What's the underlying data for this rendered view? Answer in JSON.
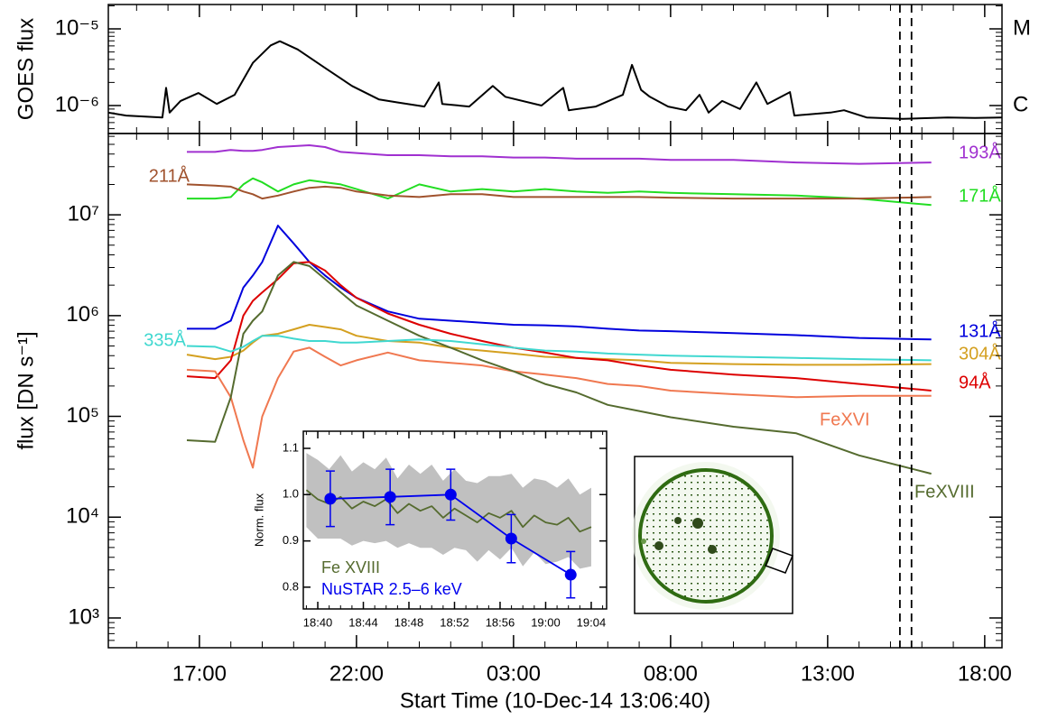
{
  "chart_data": [
    {
      "type": "line",
      "y_label": "GOES flux",
      "log_y": true,
      "xlim": [
        14.1,
        42.55
      ],
      "ylim": [
        4.32e-07,
        2.08e-05
      ],
      "yticks": [
        {
          "value": 1e-05,
          "label": "10⁻⁵"
        },
        {
          "value": 1e-06,
          "label": "10⁻⁶"
        }
      ],
      "right_labels": [
        {
          "value": 1e-05,
          "label": "M"
        },
        {
          "value": 1e-06,
          "label": "C"
        }
      ],
      "series": [
        {
          "color": "#000000",
          "x": [
            14.1,
            14.67,
            15.82,
            15.94,
            16.05,
            16.4,
            16.97,
            17.55,
            18.12,
            18.7,
            19.27,
            19.56,
            20.13,
            21.0,
            21.86,
            22.72,
            23.3,
            24.16,
            24.62,
            24.73,
            25.59,
            26.34,
            26.74,
            27.89,
            28.58,
            28.76,
            29.62,
            30.48,
            30.77,
            31.06,
            31.34,
            31.92,
            32.49,
            32.92,
            33.21,
            33.64,
            34.21,
            34.73,
            35.08,
            35.8,
            35.94,
            37.09,
            37.52,
            38.24,
            39.39,
            40.82,
            41.69,
            42.55
          ],
          "values": [
            8.1e-07,
            7.4e-07,
            7e-07,
            1.7e-06,
            8.1e-07,
            1.15e-06,
            1.46e-06,
            1.05e-06,
            1.38e-06,
            3.6e-06,
            6.1e-06,
            6.9e-06,
            5.4e-06,
            3.1e-06,
            1.8e-06,
            1.2e-06,
            1.1e-06,
            9.7e-07,
            2e-06,
            1.05e-06,
            9.7e-07,
            1.8e-06,
            1.3e-06,
            1e-06,
            1.7e-06,
            8.7e-07,
            9.7e-07,
            1.38e-06,
            3.4e-06,
            1.6e-06,
            1.3e-06,
            9.7e-07,
            8.7e-07,
            1.38e-06,
            8.1e-07,
            1.15e-06,
            9e-07,
            2e-06,
            1.05e-06,
            1.5e-06,
            7.4e-07,
            8.1e-07,
            8.7e-07,
            7e-07,
            6.7e-07,
            7e-07,
            6.9e-07,
            7e-07
          ]
        }
      ]
    },
    {
      "type": "line",
      "y_label": "flux [DN s⁻¹]",
      "x_label": "Start Time (10-Dec-14 13:06:40)",
      "log_y": true,
      "xlim": [
        14.1,
        42.55
      ],
      "ylim": [
        507,
        64000000.0
      ],
      "xticks": [
        {
          "value": 17,
          "label": "17:00"
        },
        {
          "value": 22,
          "label": "22:00"
        },
        {
          "value": 27,
          "label": "03:00"
        },
        {
          "value": 32,
          "label": "08:00"
        },
        {
          "value": 37,
          "label": "13:00"
        },
        {
          "value": 42,
          "label": "18:00"
        }
      ],
      "yticks": [
        {
          "value": 1000,
          "label": "10³"
        },
        {
          "value": 10000,
          "label": "10⁴"
        },
        {
          "value": 100000,
          "label": "10⁵"
        },
        {
          "value": 1000000,
          "label": "10⁶"
        },
        {
          "value": 10000000,
          "label": "10⁷"
        }
      ],
      "vlines": [
        39.3,
        39.67
      ],
      "x": [
        16.6,
        17.5,
        18.0,
        18.4,
        18.7,
        19.0,
        19.5,
        20.0,
        20.5,
        21.0,
        21.5,
        22,
        23,
        24,
        25,
        26,
        27,
        28,
        29,
        30,
        31,
        32,
        34,
        36,
        38,
        40.3
      ],
      "series": [
        {
          "name": "193Å",
          "color": "#a030d0",
          "values": [
            42000000.0,
            42000000.0,
            44000000.0,
            43000000.0,
            43000000.0,
            44000000.0,
            47000000.0,
            48000000.0,
            49000000.0,
            47000000.0,
            42000000.0,
            41000000.0,
            39000000.0,
            39000000.0,
            38000000.0,
            38000000.0,
            37000000.0,
            37000000.0,
            36000000.0,
            36000000.0,
            36000000.0,
            35000000.0,
            35000000.0,
            33000000.0,
            32000000.0,
            33000000.0
          ]
        },
        {
          "name": "171Å",
          "color": "#22dd22",
          "values": [
            14500000.0,
            14500000.0,
            15000000.0,
            20000000.0,
            23000000.0,
            21000000.0,
            17000000.0,
            20000000.0,
            22000000.0,
            21000000.0,
            20000000.0,
            18000000.0,
            14500000.0,
            20000000.0,
            17000000.0,
            18000000.0,
            17000000.0,
            18000000.0,
            17000000.0,
            16500000.0,
            17000000.0,
            16500000.0,
            16000000.0,
            15500000.0,
            14500000.0,
            12500000.0
          ]
        },
        {
          "name": "211Å",
          "color": "#a0522d",
          "values": [
            20000000.0,
            19500000.0,
            19000000.0,
            17000000.0,
            16000000.0,
            14500000.0,
            15500000.0,
            17000000.0,
            18500000.0,
            19000000.0,
            18500000.0,
            17000000.0,
            15500000.0,
            15000000.0,
            16000000.0,
            16000000.0,
            15000000.0,
            15000000.0,
            15000000.0,
            15000000.0,
            15000000.0,
            14800000.0,
            14500000.0,
            14500000.0,
            14500000.0,
            15000000.0
          ]
        },
        {
          "name": "131Å",
          "color": "#0000dd",
          "values": [
            740000.0,
            740000.0,
            890000.0,
            1900000.0,
            2500000.0,
            3400000.0,
            7800000.0,
            5200000.0,
            3400000.0,
            2500000.0,
            1900000.0,
            1500000.0,
            1100000.0,
            930000.0,
            890000.0,
            850000.0,
            810000.0,
            800000.0,
            780000.0,
            740000.0,
            710000.0,
            700000.0,
            670000.0,
            640000.0,
            600000.0,
            580000.0
          ]
        },
        {
          "name": "304Å",
          "color": "#d4a020",
          "values": [
            410000.0,
            370000.0,
            390000.0,
            450000.0,
            540000.0,
            630000.0,
            660000.0,
            730000.0,
            810000.0,
            770000.0,
            730000.0,
            630000.0,
            560000.0,
            540000.0,
            480000.0,
            450000.0,
            420000.0,
            390000.0,
            380000.0,
            370000.0,
            360000.0,
            340000.0,
            330000.0,
            325000.0,
            325000.0,
            330000.0
          ]
        },
        {
          "name": "94Å",
          "color": "#dd0000",
          "values": [
            250000.0,
            240000.0,
            360000.0,
            1000000.0,
            1400000.0,
            1700000.0,
            2300000.0,
            3300000.0,
            3400000.0,
            2800000.0,
            2000000.0,
            1500000.0,
            1050000.0,
            810000.0,
            660000.0,
            560000.0,
            480000.0,
            430000.0,
            380000.0,
            360000.0,
            320000.0,
            290000.0,
            260000.0,
            240000.0,
            210000.0,
            180000.0
          ]
        },
        {
          "name": "FeXVI",
          "color": "#f07850",
          "values": [
            290000.0,
            280000.0,
            155000.0,
            58000.0,
            31000.0,
            100000.0,
            240000.0,
            440000.0,
            480000.0,
            390000.0,
            320000.0,
            360000.0,
            430000.0,
            360000.0,
            340000.0,
            320000.0,
            280000.0,
            260000.0,
            240000.0,
            210000.0,
            200000.0,
            180000.0,
            166000.0,
            155000.0,
            160000.0,
            160000.0
          ]
        },
        {
          "name": "FeXVIII",
          "color": "#556b2f",
          "values": [
            58000.0,
            56000.0,
            155000.0,
            660000.0,
            890000.0,
            1100000.0,
            2500000.0,
            3400000.0,
            3100000.0,
            2300000.0,
            1700000.0,
            1260000.0,
            890000.0,
            630000.0,
            480000.0,
            360000.0,
            280000.0,
            210000.0,
            173000.0,
            130000.0,
            113000.0,
            98000.0,
            79000.0,
            68000.0,
            41000.0,
            27000.0
          ]
        },
        {
          "name": "335Å",
          "color": "#40d8d0",
          "values": [
            500000.0,
            490000.0,
            440000.0,
            490000.0,
            560000.0,
            630000.0,
            630000.0,
            590000.0,
            560000.0,
            560000.0,
            540000.0,
            540000.0,
            560000.0,
            580000.0,
            560000.0,
            520000.0,
            480000.0,
            450000.0,
            440000.0,
            420000.0,
            410000.0,
            400000.0,
            390000.0,
            380000.0,
            370000.0,
            360000.0
          ]
        }
      ]
    },
    {
      "type": "line",
      "y_label": "Norm. flux",
      "xlim": [
        38.73,
        65.35
      ],
      "ylim": [
        0.753,
        1.137
      ],
      "xticks": [
        {
          "value": 40,
          "label": "18:40"
        },
        {
          "value": 44,
          "label": "18:44"
        },
        {
          "value": 48,
          "label": "18:48"
        },
        {
          "value": 52,
          "label": "18:52"
        },
        {
          "value": 56,
          "label": "18:56"
        },
        {
          "value": 60,
          "label": "19:00"
        },
        {
          "value": 64,
          "label": "19:04"
        }
      ],
      "yticks": [
        0.8,
        0.9,
        {
          "value": 1,
          "label": "1.0"
        },
        1.1
      ],
      "series": [
        {
          "name": "Fe XVIII",
          "color": "#556b2f",
          "band_color": "#c0c0c0",
          "error_style": "band",
          "x": [
            39,
            40,
            41,
            42,
            43,
            44,
            45,
            46,
            47,
            48,
            49,
            50,
            51,
            52,
            53,
            54,
            55,
            56,
            57,
            58,
            59,
            60,
            61,
            62,
            63,
            64
          ],
          "values": [
            1.01,
            0.99,
            0.98,
            0.995,
            0.97,
            0.985,
            0.975,
            0.99,
            0.96,
            0.98,
            0.965,
            0.975,
            0.95,
            0.97,
            0.955,
            0.94,
            0.96,
            0.95,
            0.965,
            0.93,
            0.955,
            0.94,
            0.935,
            0.95,
            0.92,
            0.93
          ],
          "errors": [
            0.08,
            0.085,
            0.075,
            0.09,
            0.08,
            0.085,
            0.08,
            0.09,
            0.075,
            0.085,
            0.08,
            0.09,
            0.08,
            0.085,
            0.075,
            0.085,
            0.08,
            0.09,
            0.08,
            0.085,
            0.08,
            0.09,
            0.08,
            0.085,
            0.08,
            0.085
          ]
        },
        {
          "name": "NuSTAR 2.5–6 keV",
          "color": "#0000ee",
          "error_style": "bar",
          "x": [
            41.1,
            46.35,
            51.67,
            56.98,
            62.2
          ],
          "values": [
            0.991,
            0.995,
            1.0,
            0.905,
            0.827
          ],
          "errors": [
            0.06,
            0.06,
            0.055,
            0.052,
            0.05
          ]
        }
      ]
    }
  ]
}
